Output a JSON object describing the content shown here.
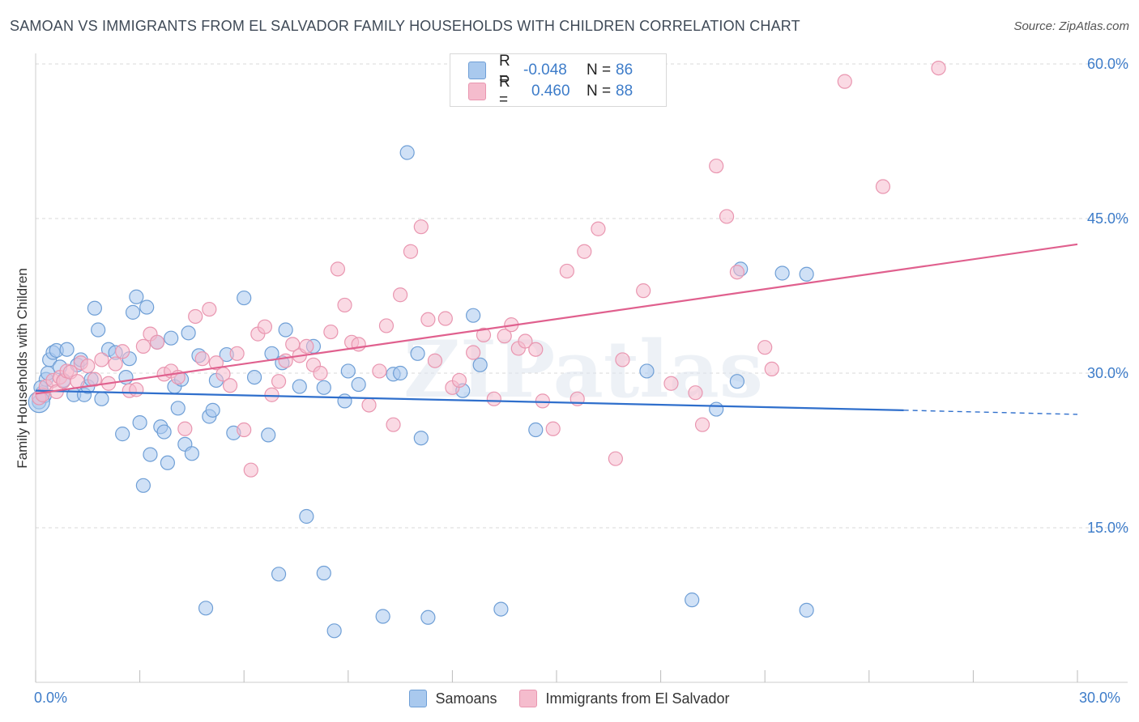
{
  "title": "SAMOAN VS IMMIGRANTS FROM EL SALVADOR FAMILY HOUSEHOLDS WITH CHILDREN CORRELATION CHART",
  "source": "Source: ZipAtlas.com",
  "colors": {
    "blue_fill": "#a9c9ee",
    "blue_stroke": "#6f9fd6",
    "blue_line": "#2f6fcc",
    "pink_fill": "#f5bccd",
    "pink_stroke": "#e996b0",
    "pink_line": "#e0608e",
    "value_text": "#3d7cc9",
    "grid": "#d9d9d9"
  },
  "legend": {
    "rows": [
      {
        "r_label": "R =",
        "r_value": "-0.048",
        "n_label": "N =",
        "n_value": "86"
      },
      {
        "r_label": "R =",
        "r_value": "0.460",
        "n_label": "N =",
        "n_value": "88"
      }
    ]
  },
  "chart_data": {
    "type": "scatter",
    "title": "SAMOAN VS IMMIGRANTS FROM EL SALVADOR FAMILY HOUSEHOLDS WITH CHILDREN CORRELATION CHART",
    "xlabel": "",
    "ylabel": "Family Households with Children",
    "xlim": [
      0,
      30
    ],
    "ylim": [
      0,
      60
    ],
    "x_tick_labels": [
      "0.0%",
      "30.0%"
    ],
    "y_ticks": [
      15,
      30,
      45,
      60
    ],
    "y_tick_labels": [
      "15.0%",
      "30.0%",
      "45.0%",
      "60.0%"
    ],
    "grid": true,
    "legend_position": "top-center",
    "watermark": "ZIPatlas",
    "series": [
      {
        "name": "Samoans",
        "r": -0.048,
        "n": 86,
        "trend": {
          "x0": 0,
          "y0": 28.3,
          "x1": 25.0,
          "y1": 26.4,
          "dash_to": 30,
          "dash_y": 26.0
        },
        "points": [
          [
            0.1,
            27.2
          ],
          [
            0.2,
            28.1
          ],
          [
            0.3,
            29.4
          ],
          [
            0.4,
            31.3
          ],
          [
            0.5,
            32.0
          ],
          [
            0.6,
            32.2
          ],
          [
            0.7,
            30.6
          ],
          [
            0.8,
            29.3
          ],
          [
            0.9,
            32.3
          ],
          [
            1.1,
            27.9
          ],
          [
            1.2,
            30.8
          ],
          [
            1.3,
            31.3
          ],
          [
            1.4,
            27.9
          ],
          [
            1.5,
            28.7
          ],
          [
            1.6,
            29.4
          ],
          [
            1.7,
            36.3
          ],
          [
            1.8,
            34.2
          ],
          [
            1.9,
            27.5
          ],
          [
            2.1,
            32.3
          ],
          [
            2.3,
            32.0
          ],
          [
            2.5,
            24.1
          ],
          [
            2.6,
            29.6
          ],
          [
            2.7,
            31.4
          ],
          [
            2.8,
            35.9
          ],
          [
            2.9,
            37.4
          ],
          [
            3.0,
            25.2
          ],
          [
            3.1,
            19.1
          ],
          [
            3.2,
            36.4
          ],
          [
            3.3,
            22.1
          ],
          [
            3.5,
            33.0
          ],
          [
            3.6,
            24.8
          ],
          [
            3.7,
            24.3
          ],
          [
            3.8,
            21.3
          ],
          [
            3.9,
            33.4
          ],
          [
            4.0,
            28.7
          ],
          [
            4.1,
            26.6
          ],
          [
            4.2,
            29.4
          ],
          [
            4.3,
            23.1
          ],
          [
            4.4,
            33.9
          ],
          [
            4.5,
            22.2
          ],
          [
            4.7,
            31.7
          ],
          [
            4.9,
            7.2
          ],
          [
            5.0,
            25.8
          ],
          [
            5.1,
            26.4
          ],
          [
            5.2,
            29.3
          ],
          [
            5.5,
            31.8
          ],
          [
            5.7,
            24.2
          ],
          [
            6.0,
            37.3
          ],
          [
            6.3,
            29.6
          ],
          [
            6.7,
            24.0
          ],
          [
            6.8,
            31.9
          ],
          [
            7.1,
            31.0
          ],
          [
            7.2,
            34.2
          ],
          [
            7.0,
            10.5
          ],
          [
            7.6,
            28.7
          ],
          [
            7.8,
            16.1
          ],
          [
            8.0,
            32.6
          ],
          [
            8.3,
            28.6
          ],
          [
            8.3,
            10.6
          ],
          [
            8.6,
            5.0
          ],
          [
            8.9,
            27.3
          ],
          [
            9.0,
            30.2
          ],
          [
            9.3,
            28.9
          ],
          [
            10.0,
            6.4
          ],
          [
            10.3,
            29.9
          ],
          [
            10.5,
            30.0
          ],
          [
            10.7,
            51.4
          ],
          [
            11.0,
            31.9
          ],
          [
            11.1,
            23.7
          ],
          [
            11.3,
            6.3
          ],
          [
            12.3,
            28.3
          ],
          [
            12.6,
            35.6
          ],
          [
            12.8,
            30.8
          ],
          [
            13.4,
            7.1
          ],
          [
            14.4,
            24.5
          ],
          [
            17.6,
            30.2
          ],
          [
            18.9,
            8.0
          ],
          [
            19.6,
            26.5
          ],
          [
            20.2,
            29.2
          ],
          [
            20.3,
            40.1
          ],
          [
            21.5,
            39.7
          ],
          [
            22.2,
            39.6
          ],
          [
            22.2,
            7.0
          ],
          [
            0.15,
            28.6
          ],
          [
            0.25,
            27.8
          ],
          [
            0.35,
            30.0
          ]
        ]
      },
      {
        "name": "Immigrants from El Salvador",
        "r": 0.46,
        "n": 88,
        "trend": {
          "x0": 0,
          "y0": 28.0,
          "x1": 30,
          "y1": 42.5
        },
        "points": [
          [
            0.1,
            27.6
          ],
          [
            0.2,
            27.9
          ],
          [
            0.3,
            28.7
          ],
          [
            0.5,
            29.3
          ],
          [
            0.6,
            28.2
          ],
          [
            0.7,
            29.6
          ],
          [
            0.8,
            29.2
          ],
          [
            0.9,
            30.2
          ],
          [
            1.0,
            30.1
          ],
          [
            1.2,
            29.2
          ],
          [
            1.3,
            31.0
          ],
          [
            1.5,
            30.7
          ],
          [
            1.7,
            29.4
          ],
          [
            1.9,
            31.3
          ],
          [
            2.1,
            29.0
          ],
          [
            2.3,
            30.9
          ],
          [
            2.5,
            32.1
          ],
          [
            2.7,
            28.3
          ],
          [
            2.9,
            28.4
          ],
          [
            3.1,
            32.6
          ],
          [
            3.3,
            33.8
          ],
          [
            3.5,
            33.0
          ],
          [
            3.7,
            29.9
          ],
          [
            3.9,
            30.2
          ],
          [
            4.1,
            29.6
          ],
          [
            4.3,
            24.6
          ],
          [
            4.6,
            35.5
          ],
          [
            4.8,
            31.4
          ],
          [
            5.0,
            36.2
          ],
          [
            5.2,
            31.0
          ],
          [
            5.4,
            29.9
          ],
          [
            5.6,
            28.8
          ],
          [
            5.8,
            31.9
          ],
          [
            6.0,
            24.5
          ],
          [
            6.2,
            20.6
          ],
          [
            6.4,
            33.8
          ],
          [
            6.6,
            34.5
          ],
          [
            6.8,
            27.9
          ],
          [
            7.0,
            29.2
          ],
          [
            7.2,
            31.2
          ],
          [
            7.4,
            32.8
          ],
          [
            7.6,
            31.7
          ],
          [
            7.8,
            32.6
          ],
          [
            8.0,
            30.8
          ],
          [
            8.2,
            30.0
          ],
          [
            8.5,
            34.0
          ],
          [
            8.7,
            40.1
          ],
          [
            8.9,
            36.6
          ],
          [
            9.1,
            33.0
          ],
          [
            9.3,
            32.8
          ],
          [
            9.6,
            26.9
          ],
          [
            9.9,
            30.2
          ],
          [
            10.1,
            34.6
          ],
          [
            10.3,
            25.0
          ],
          [
            10.5,
            37.6
          ],
          [
            10.8,
            41.8
          ],
          [
            11.1,
            44.2
          ],
          [
            11.3,
            35.2
          ],
          [
            11.5,
            31.2
          ],
          [
            11.8,
            35.3
          ],
          [
            12.0,
            28.6
          ],
          [
            12.2,
            29.3
          ],
          [
            12.6,
            32.0
          ],
          [
            12.9,
            33.7
          ],
          [
            13.2,
            27.5
          ],
          [
            13.5,
            33.6
          ],
          [
            13.7,
            34.7
          ],
          [
            13.9,
            32.4
          ],
          [
            14.1,
            33.1
          ],
          [
            14.4,
            32.3
          ],
          [
            14.6,
            27.3
          ],
          [
            14.9,
            24.6
          ],
          [
            15.3,
            39.9
          ],
          [
            15.6,
            27.5
          ],
          [
            15.8,
            41.8
          ],
          [
            16.2,
            44.0
          ],
          [
            16.7,
            21.7
          ],
          [
            16.9,
            31.3
          ],
          [
            17.5,
            38.0
          ],
          [
            18.3,
            29.0
          ],
          [
            19.0,
            28.1
          ],
          [
            19.2,
            25.0
          ],
          [
            19.6,
            50.1
          ],
          [
            19.9,
            45.2
          ],
          [
            20.2,
            39.8
          ],
          [
            21.0,
            32.5
          ],
          [
            21.2,
            30.4
          ],
          [
            23.3,
            58.3
          ]
        ],
        "extra_points": [
          [
            24.4,
            48.1
          ],
          [
            26.0,
            59.6
          ]
        ]
      }
    ]
  },
  "bottom_legend": [
    {
      "label": "Samoans"
    },
    {
      "label": "Immigrants from El Salvador"
    }
  ]
}
